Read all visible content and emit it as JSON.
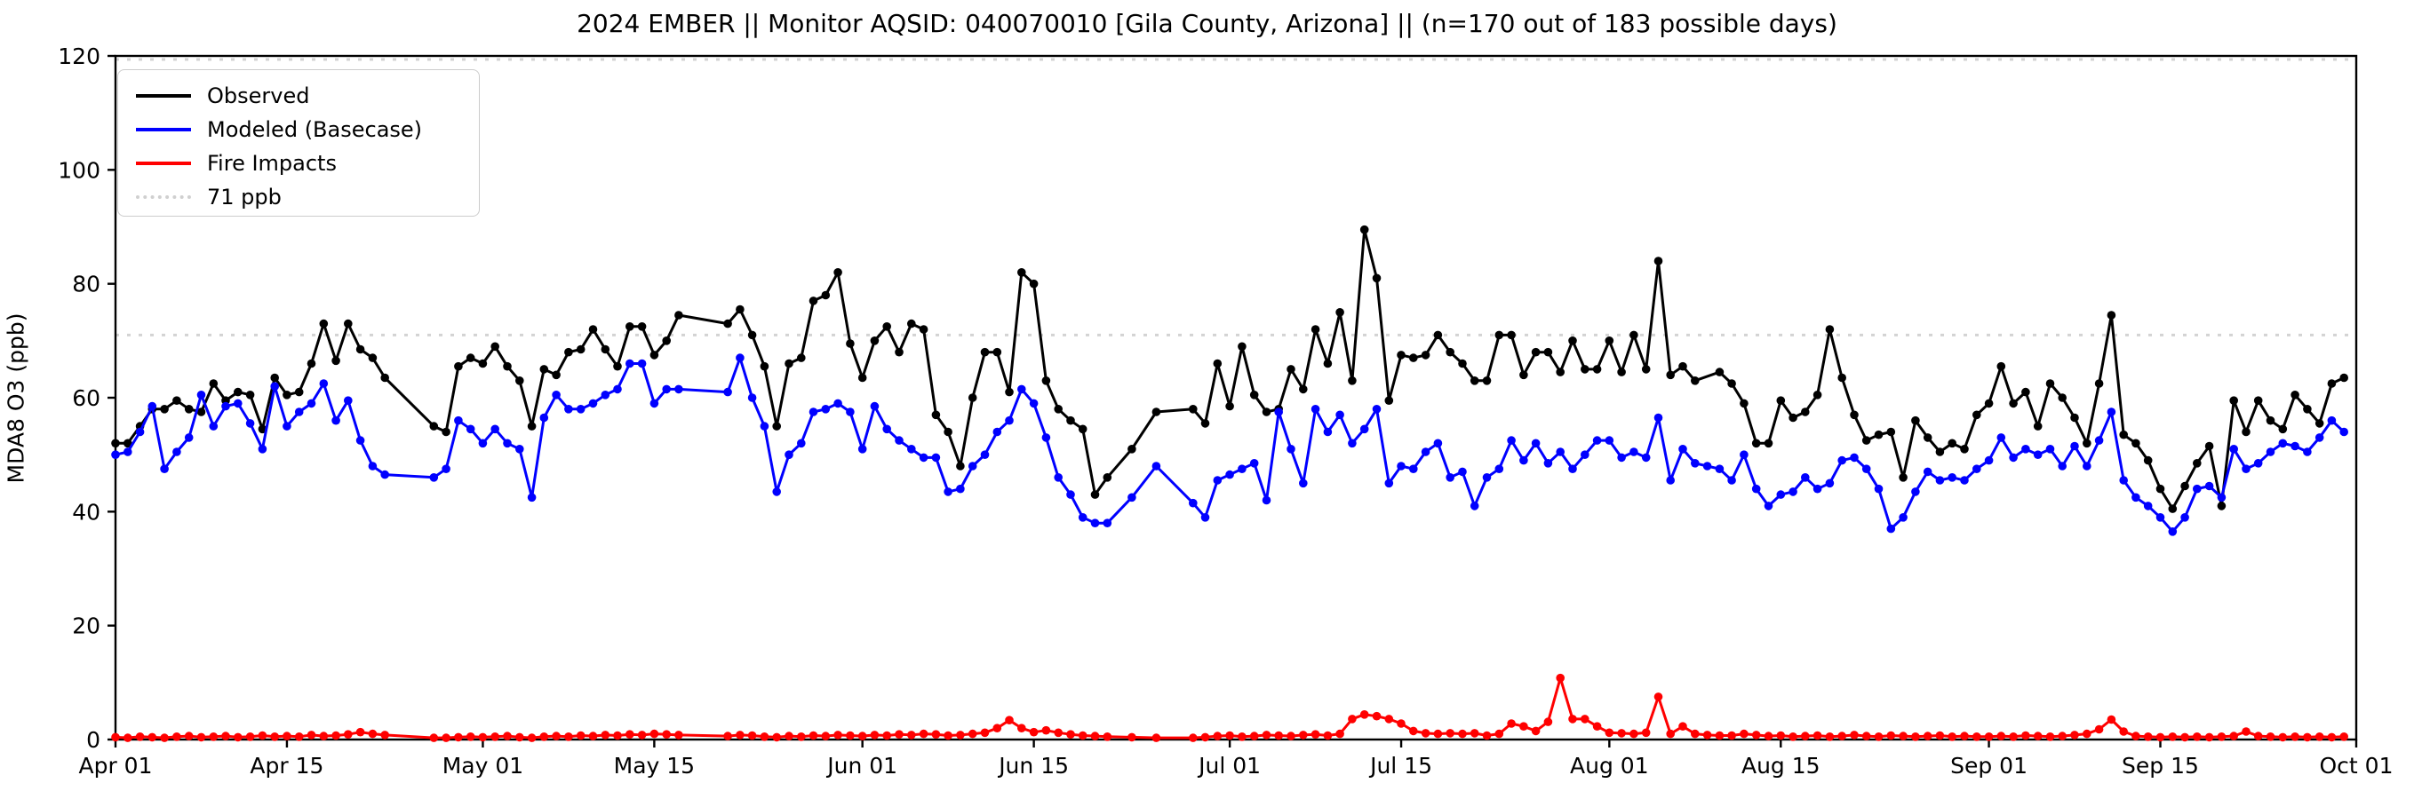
{
  "title": "2024 EMBER || Monitor AQSID: 040070010 [Gila County, Arizona] || (n=170 out of 183 possible days)",
  "ylabel": "MDA8 O3 (ppb)",
  "legend": [
    {
      "label": "Observed",
      "color": "#000000",
      "style": "solid"
    },
    {
      "label": "Modeled (Basecase)",
      "color": "#0000ff",
      "style": "solid"
    },
    {
      "label": "Fire Impacts",
      "color": "#ff0000",
      "style": "solid"
    },
    {
      "label": "71 ppb",
      "color": "#d3d3d3",
      "style": "dotted"
    }
  ],
  "chart_data": {
    "type": "line",
    "x_start": "Apr 01",
    "x_end": "Oct 01",
    "n_days_shown": "n=170 out of 183 possible days",
    "threshold_ppb": 71,
    "threshold_color": "#d3d3d3",
    "ylim": [
      0,
      120
    ],
    "ytick_labels": [
      "0",
      "20",
      "40",
      "60",
      "80",
      "100",
      "120"
    ],
    "ytick_values": [
      0,
      20,
      40,
      60,
      80,
      100,
      120
    ],
    "xticks": [
      {
        "label": "Apr 01",
        "day": 0
      },
      {
        "label": "Apr 15",
        "day": 14
      },
      {
        "label": "May 01",
        "day": 30
      },
      {
        "label": "May 15",
        "day": 44
      },
      {
        "label": "Jun 01",
        "day": 61
      },
      {
        "label": "Jun 15",
        "day": 75
      },
      {
        "label": "Jul 01",
        "day": 91
      },
      {
        "label": "Jul 15",
        "day": 105
      },
      {
        "label": "Aug 01",
        "day": 122
      },
      {
        "label": "Aug 15",
        "day": 136
      },
      {
        "label": "Sep 01",
        "day": 153
      },
      {
        "label": "Sep 15",
        "day": 167
      },
      {
        "label": "Oct 01",
        "day": 183
      }
    ],
    "series": [
      {
        "name": "Observed",
        "color": "#000000",
        "values": [
          52,
          52,
          55,
          58,
          58,
          59.5,
          58,
          57.5,
          62.5,
          59.5,
          61,
          60.5,
          54.5,
          63.5,
          60.5,
          61,
          66,
          73,
          66.5,
          73,
          68.5,
          67,
          63.5,
          null,
          null,
          null,
          55,
          54,
          65.5,
          67,
          66,
          69,
          65.5,
          63,
          55,
          65,
          64,
          68,
          68.5,
          72,
          68.5,
          65.5,
          72.5,
          72.5,
          67.5,
          70,
          74.5,
          null,
          null,
          null,
          73,
          75.5,
          71,
          65.5,
          55,
          66,
          67,
          77,
          78,
          82,
          69.5,
          63.5,
          70,
          72.5,
          68,
          73,
          72,
          57,
          54,
          48,
          60,
          68,
          68,
          61,
          82,
          80,
          63,
          58,
          56,
          54.5,
          43,
          46,
          null,
          51,
          null,
          57.5,
          null,
          null,
          58,
          55.5,
          66,
          58.5,
          69,
          60.5,
          57.5,
          58,
          65,
          61.5,
          72,
          66,
          75,
          63,
          89.5,
          81,
          59.5,
          67.5,
          67,
          67.5,
          71,
          68,
          66,
          63,
          63,
          71,
          71,
          64,
          68,
          68,
          64.5,
          70,
          65,
          65,
          70,
          64.5,
          71,
          65,
          84,
          64,
          65.5,
          63,
          null,
          64.5,
          62.5,
          59,
          52,
          52,
          59.5,
          56.5,
          57.5,
          60.5,
          72,
          63.5,
          57,
          52.5,
          53.5,
          54,
          46,
          56,
          53,
          50.5,
          52,
          51,
          57,
          59,
          65.5,
          59,
          61,
          55,
          62.5,
          60,
          56.5,
          52,
          62.5,
          74.5,
          53.5,
          52,
          49,
          44,
          40.5,
          44.5,
          48.5,
          51.5,
          41,
          59.5,
          54,
          59.5,
          56,
          54.5,
          60.5,
          58,
          55.5,
          62.5,
          63.5
        ]
      },
      {
        "name": "Modeled (Basecase)",
        "color": "#0000ff",
        "values": [
          50,
          50.5,
          54,
          58.5,
          47.5,
          50.5,
          53,
          60.5,
          55,
          58.5,
          59,
          55.5,
          51,
          62,
          55,
          57.5,
          59,
          62.5,
          56,
          59.5,
          52.5,
          48,
          46.5,
          null,
          null,
          null,
          46,
          47.5,
          56,
          54.5,
          52,
          54.5,
          52,
          51,
          42.5,
          56.5,
          60.5,
          58,
          58,
          59,
          60.5,
          61.5,
          66,
          66,
          59,
          61.5,
          61.5,
          null,
          null,
          null,
          61,
          67,
          60,
          55,
          43.5,
          50,
          52,
          57.5,
          58,
          59,
          57.5,
          51,
          58.5,
          54.5,
          52.5,
          51,
          49.5,
          49.5,
          43.5,
          44,
          48,
          50,
          54,
          56,
          61.5,
          59,
          53,
          46,
          43,
          39,
          38,
          38,
          null,
          42.5,
          null,
          48,
          null,
          null,
          41.5,
          39,
          45.5,
          46.5,
          47.5,
          48.5,
          42,
          57.5,
          51,
          45,
          58,
          54,
          57,
          52,
          54.5,
          58,
          45,
          48,
          47.5,
          50.5,
          52,
          46,
          47,
          41,
          46,
          47.5,
          52.5,
          49,
          52,
          48.5,
          50.5,
          47.5,
          50,
          52.5,
          52.5,
          49.5,
          50.5,
          49.5,
          56.5,
          45.5,
          51,
          48.5,
          48,
          47.5,
          45.5,
          50,
          44,
          41,
          43,
          43.5,
          46,
          44,
          45,
          49,
          49.5,
          47.5,
          44,
          37,
          39,
          43.5,
          47,
          45.5,
          46,
          45.5,
          47.5,
          49,
          53,
          49.5,
          51,
          50,
          51,
          48,
          51.5,
          48,
          52.5,
          57.5,
          45.5,
          42.5,
          41,
          39,
          36.5,
          39,
          44,
          44.5,
          42.5,
          51,
          47.5,
          48.5,
          50.5,
          52,
          51.5,
          50.5,
          53,
          56,
          54
        ]
      },
      {
        "name": "Fire Impacts",
        "color": "#ff0000",
        "values": [
          0.4,
          0.3,
          0.5,
          0.4,
          0.3,
          0.5,
          0.6,
          0.4,
          0.5,
          0.6,
          0.4,
          0.5,
          0.7,
          0.5,
          0.6,
          0.5,
          0.8,
          0.6,
          0.7,
          0.9,
          1.3,
          1.0,
          0.8,
          null,
          null,
          null,
          0.3,
          0.3,
          0.4,
          0.5,
          0.4,
          0.5,
          0.6,
          0.4,
          0.3,
          0.5,
          0.6,
          0.5,
          0.7,
          0.6,
          0.8,
          0.7,
          0.9,
          0.8,
          1.0,
          0.9,
          0.8,
          null,
          null,
          null,
          0.6,
          0.8,
          0.7,
          0.5,
          0.4,
          0.6,
          0.5,
          0.7,
          0.6,
          0.8,
          0.7,
          0.6,
          0.8,
          0.7,
          0.9,
          0.8,
          1.0,
          0.9,
          0.7,
          0.8,
          1.0,
          1.2,
          2.0,
          3.4,
          2.0,
          1.3,
          1.6,
          1.2,
          0.9,
          0.7,
          0.6,
          0.5,
          null,
          0.4,
          null,
          0.3,
          null,
          null,
          0.3,
          0.4,
          0.6,
          0.7,
          0.5,
          0.6,
          0.8,
          0.7,
          0.6,
          0.8,
          0.9,
          0.7,
          1.0,
          3.6,
          4.4,
          4.1,
          3.6,
          2.8,
          1.5,
          1.1,
          1.0,
          1.1,
          1.0,
          1.1,
          0.7,
          1.0,
          2.8,
          2.3,
          1.5,
          3.1,
          10.8,
          3.6,
          3.6,
          2.3,
          1.2,
          1.1,
          1.0,
          1.2,
          7.5,
          1.0,
          2.3,
          1.0,
          0.8,
          0.7,
          0.7,
          1.0,
          0.8,
          0.6,
          0.7,
          0.5,
          0.6,
          0.7,
          0.5,
          0.6,
          0.8,
          0.6,
          0.5,
          0.7,
          0.6,
          0.5,
          0.6,
          0.7,
          0.5,
          0.6,
          0.5,
          0.5,
          0.6,
          0.5,
          0.7,
          0.6,
          0.5,
          0.6,
          0.8,
          1.0,
          1.8,
          3.5,
          1.4,
          0.6,
          0.5,
          0.4,
          0.5,
          0.4,
          0.5,
          0.4,
          0.5,
          0.6,
          1.4,
          0.6,
          0.5,
          0.4,
          0.5,
          0.4,
          0.5,
          0.4,
          0.5
        ]
      }
    ]
  }
}
